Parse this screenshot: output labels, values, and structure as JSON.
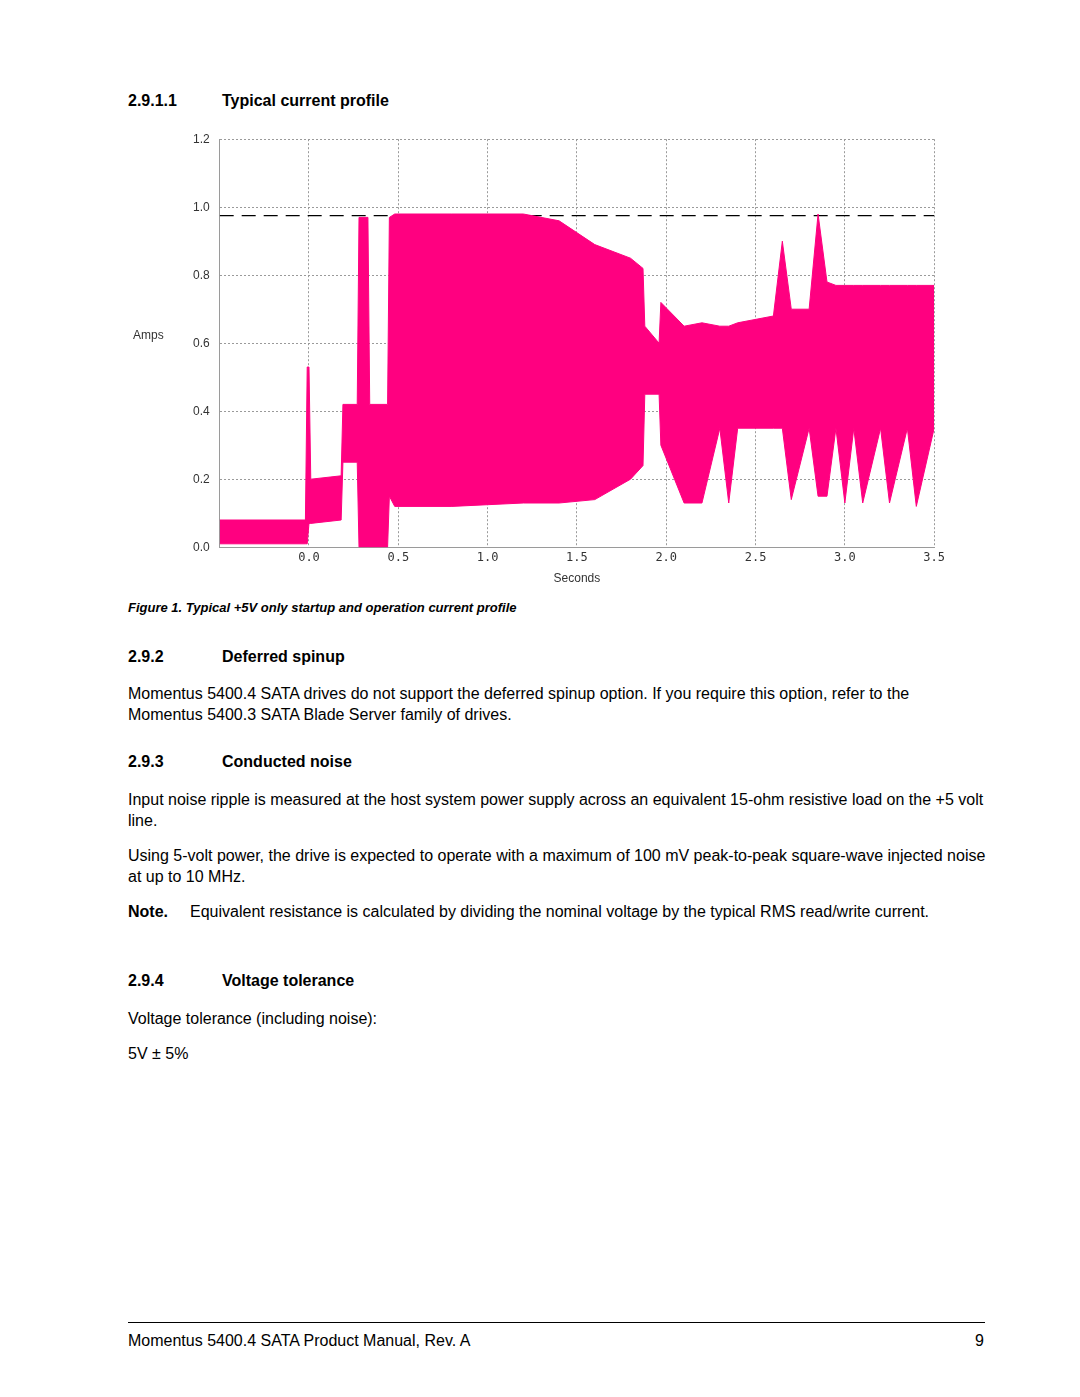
{
  "page": {
    "heading": {
      "number": "2.9.1.1",
      "title": "Typical current profile"
    },
    "figure_caption": "Figure 1. Typical +5V only startup and operation current profile",
    "sections": [
      {
        "number": "2.9.2",
        "title": "Deferred spinup",
        "paragraphs": [
          "Momentus 5400.4 SATA drives do not support the deferred spinup option. If you require this option, refer to the Momentus 5400.3 SATA Blade Server family of drives."
        ]
      },
      {
        "number": "2.9.3",
        "title": "Conducted noise",
        "paragraphs": [
          "Input noise ripple is measured at the host system power supply across an equivalent 15-ohm resistive load on the +5 volt line.",
          "Using 5-volt power, the drive is expected to operate with a maximum of 100 mV peak-to-peak square-wave injected noise at up to 10 MHz."
        ],
        "note": {
          "label": "Note.",
          "text": "Equivalent resistance is calculated by dividing the nominal voltage by the typical RMS read/write current."
        }
      },
      {
        "number": "2.9.4",
        "title": "Voltage tolerance",
        "paragraphs": [
          "Voltage tolerance (including noise):",
          "5V ± 5%"
        ]
      }
    ],
    "footer": {
      "left": "Momentus 5400.4 SATA Product Manual, Rev. A",
      "page": "9"
    }
  },
  "chart_data": {
    "type": "line",
    "x_label": "Seconds",
    "y_label": "Amps",
    "x": [
      -0.5,
      -0.02,
      -0.01,
      0.0,
      0.01,
      0.18,
      0.19,
      0.27,
      0.28,
      0.33,
      0.34,
      0.44,
      0.45,
      0.48,
      0.8,
      1.2,
      1.4,
      1.6,
      1.8,
      1.87,
      1.88,
      1.96,
      1.97,
      2.1,
      2.2,
      2.3,
      2.35,
      2.4,
      2.6,
      2.65,
      2.7,
      2.8,
      2.85,
      2.9,
      2.95,
      3.0,
      3.05,
      3.1,
      3.2,
      3.25,
      3.35,
      3.4,
      3.5
    ],
    "series": [
      {
        "color": "#ff0080",
        "values": [
          0.08,
          0.08,
          0.53,
          0.53,
          0.2,
          0.21,
          0.42,
          0.42,
          0.97,
          0.97,
          0.42,
          0.42,
          0.97,
          0.98,
          0.98,
          0.98,
          0.96,
          0.89,
          0.85,
          0.82,
          0.65,
          0.6,
          0.72,
          0.65,
          0.66,
          0.65,
          0.65,
          0.66,
          0.68,
          0.9,
          0.7,
          0.7,
          0.98,
          0.78,
          0.77,
          0.77,
          0.77,
          0.77,
          0.77,
          0.77,
          0.77,
          0.77,
          0.77
        ]
      },
      {
        "color": "#ff0080",
        "values": [
          0.01,
          0.01,
          0.01,
          0.07,
          0.07,
          0.08,
          0.25,
          0.25,
          0.0,
          0.0,
          0.0,
          0.0,
          0.15,
          0.12,
          0.12,
          0.13,
          0.13,
          0.14,
          0.2,
          0.24,
          0.45,
          0.45,
          0.3,
          0.13,
          0.13,
          0.35,
          0.13,
          0.35,
          0.35,
          0.35,
          0.14,
          0.35,
          0.15,
          0.15,
          0.35,
          0.13,
          0.35,
          0.13,
          0.35,
          0.13,
          0.35,
          0.12,
          0.35
        ]
      }
    ],
    "reference_line": {
      "value": 0.975,
      "line_style": "dashed",
      "color": "#000000"
    },
    "xlim": [
      -0.5,
      3.5
    ],
    "xticks": [
      {
        "value": 0,
        "label": "0.0"
      },
      {
        "value": 0.5,
        "label": "0.5"
      },
      {
        "value": 1,
        "label": "1.0"
      },
      {
        "value": 1.5,
        "label": "1.5"
      },
      {
        "value": 2,
        "label": "2.0"
      },
      {
        "value": 2.5,
        "label": "2.5"
      },
      {
        "value": 3,
        "label": "3.0"
      },
      {
        "value": 3.5,
        "label": "3.5"
      }
    ],
    "ylim": [
      0,
      1.2
    ],
    "yticks": [
      {
        "value": 0,
        "label": "0.0"
      },
      {
        "value": 0.2,
        "label": "0.2"
      },
      {
        "value": 0.4,
        "label": "0.4"
      },
      {
        "value": 0.6,
        "label": "0.6"
      },
      {
        "value": 0.8,
        "label": "0.8"
      },
      {
        "value": 1,
        "label": "1.0"
      },
      {
        "value": 1.2,
        "label": "1.2"
      }
    ],
    "grid": true
  }
}
